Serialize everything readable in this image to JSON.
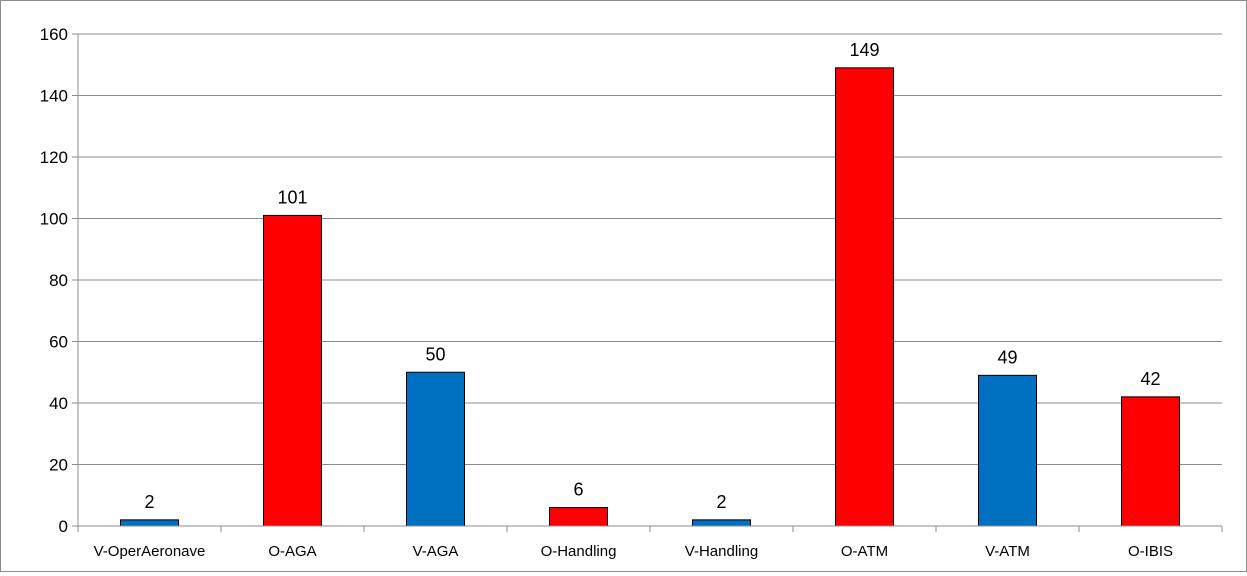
{
  "chart_data": {
    "type": "bar",
    "title": "",
    "xlabel": "",
    "ylabel": "",
    "categories": [
      "V-OperAeronave",
      "O-AGA",
      "V-AGA",
      "O-Handling",
      "V-Handling",
      "O-ATM",
      "V-ATM",
      "O-IBIS"
    ],
    "values": [
      2,
      101,
      50,
      6,
      2,
      149,
      49,
      42
    ],
    "data_labels": [
      "2",
      "101",
      "50",
      "6",
      "2",
      "149",
      "49",
      "42"
    ],
    "bar_colors": [
      "#0070c0",
      "#ff0000",
      "#0070c0",
      "#ff0000",
      "#0070c0",
      "#ff0000",
      "#0070c0",
      "#ff0000"
    ],
    "ylim": [
      0,
      160
    ],
    "yticks": [
      0,
      20,
      40,
      60,
      80,
      100,
      120,
      140,
      160
    ],
    "grid": true,
    "legend": "none"
  }
}
